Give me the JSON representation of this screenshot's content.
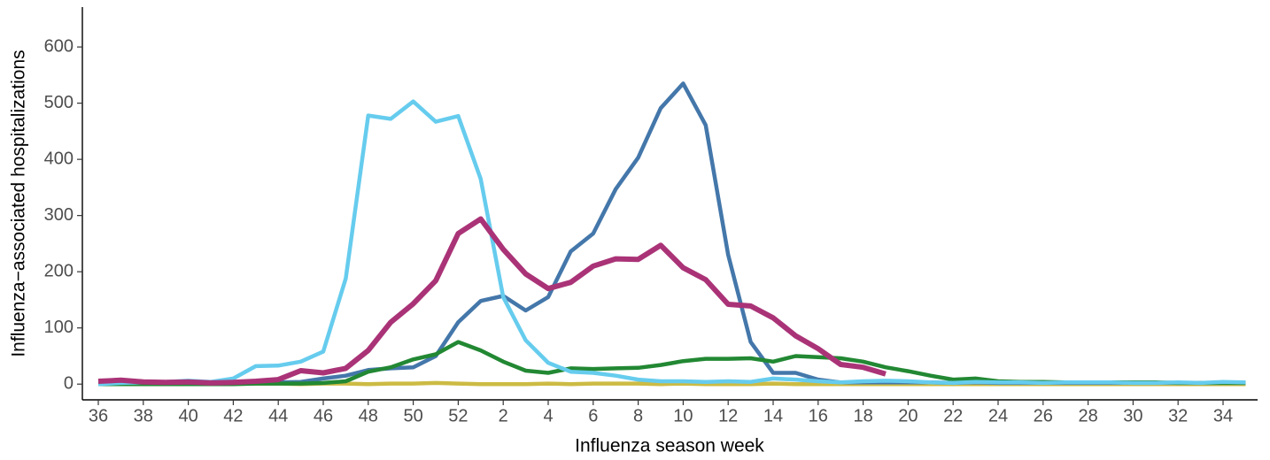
{
  "chart_data": {
    "type": "line",
    "xlabel": "Influenza season week",
    "ylabel": "Influenza−associated hospitalizations",
    "categories": [
      "36",
      null,
      "38",
      null,
      "40",
      null,
      "42",
      null,
      "44",
      null,
      "46",
      null,
      "48",
      null,
      "50",
      null,
      "52",
      null,
      "2",
      null,
      "4",
      null,
      "6",
      null,
      "8",
      null,
      "10",
      null,
      "12",
      null,
      "14",
      null,
      "16",
      null,
      "18",
      null,
      "20",
      null,
      "22",
      null,
      "24",
      null,
      "26",
      null,
      "28",
      null,
      "30",
      null,
      "32",
      null,
      "34",
      null
    ],
    "ylim": [
      -28,
      671
    ],
    "yticks": [
      0,
      100,
      200,
      300,
      400,
      500,
      600
    ],
    "series": [
      {
        "color": "#ccbb44",
        "values": [
          0,
          1,
          1,
          1,
          1,
          0,
          1,
          1,
          1,
          0,
          1,
          1,
          0,
          1,
          1,
          2,
          1,
          0,
          0,
          0,
          1,
          0,
          1,
          1,
          1,
          0,
          1,
          0,
          0,
          0,
          1,
          0,
          0,
          0,
          0,
          0,
          0,
          0,
          0,
          0,
          0,
          0,
          0,
          0,
          0,
          0,
          0,
          0,
          0,
          0,
          0,
          0
        ]
      },
      {
        "color": "#4477aa",
        "values": [
          0,
          1,
          1,
          1,
          2,
          2,
          2,
          2,
          3,
          4,
          10,
          15,
          25,
          28,
          30,
          50,
          110,
          148,
          157,
          131,
          155,
          236,
          268,
          347,
          403,
          491,
          535,
          461,
          230,
          75,
          20,
          20,
          8,
          3,
          3,
          3,
          3,
          3,
          2,
          3,
          2,
          2,
          2,
          2,
          2,
          2,
          2,
          2,
          2,
          2,
          2,
          2
        ]
      },
      {
        "color": "#228833",
        "values": [
          0,
          0,
          0,
          0,
          0,
          0,
          0,
          1,
          1,
          1,
          2,
          5,
          22,
          30,
          44,
          53,
          75,
          60,
          40,
          24,
          20,
          28,
          27,
          28,
          29,
          34,
          41,
          45,
          45,
          46,
          40,
          50,
          48,
          46,
          40,
          30,
          23,
          15,
          8,
          10,
          5,
          4,
          4,
          3,
          3,
          3,
          3,
          3,
          2,
          2,
          2,
          2
        ]
      },
      {
        "color": "#66ccee",
        "values": [
          0,
          2,
          3,
          4,
          6,
          4,
          10,
          32,
          33,
          40,
          58,
          188,
          478,
          472,
          503,
          467,
          477,
          365,
          155,
          78,
          38,
          22,
          20,
          15,
          8,
          5,
          5,
          4,
          5,
          4,
          10,
          8,
          5,
          3,
          5,
          6,
          5,
          3,
          2,
          4,
          3,
          3,
          2,
          3,
          3,
          3,
          2,
          2,
          3,
          2,
          4,
          3
        ]
      },
      {
        "color": "#aa3377",
        "values": [
          5,
          7,
          4,
          3,
          4,
          2,
          3,
          5,
          8,
          24,
          20,
          28,
          60,
          110,
          143,
          184,
          268,
          294,
          240,
          196,
          170,
          181,
          210,
          223,
          222,
          247,
          207,
          186,
          142,
          139,
          118,
          86,
          63,
          35,
          30,
          18,
          null,
          null,
          null,
          null,
          null,
          null,
          null,
          null,
          null,
          null,
          null,
          null,
          null,
          null,
          null,
          null
        ]
      }
    ]
  }
}
